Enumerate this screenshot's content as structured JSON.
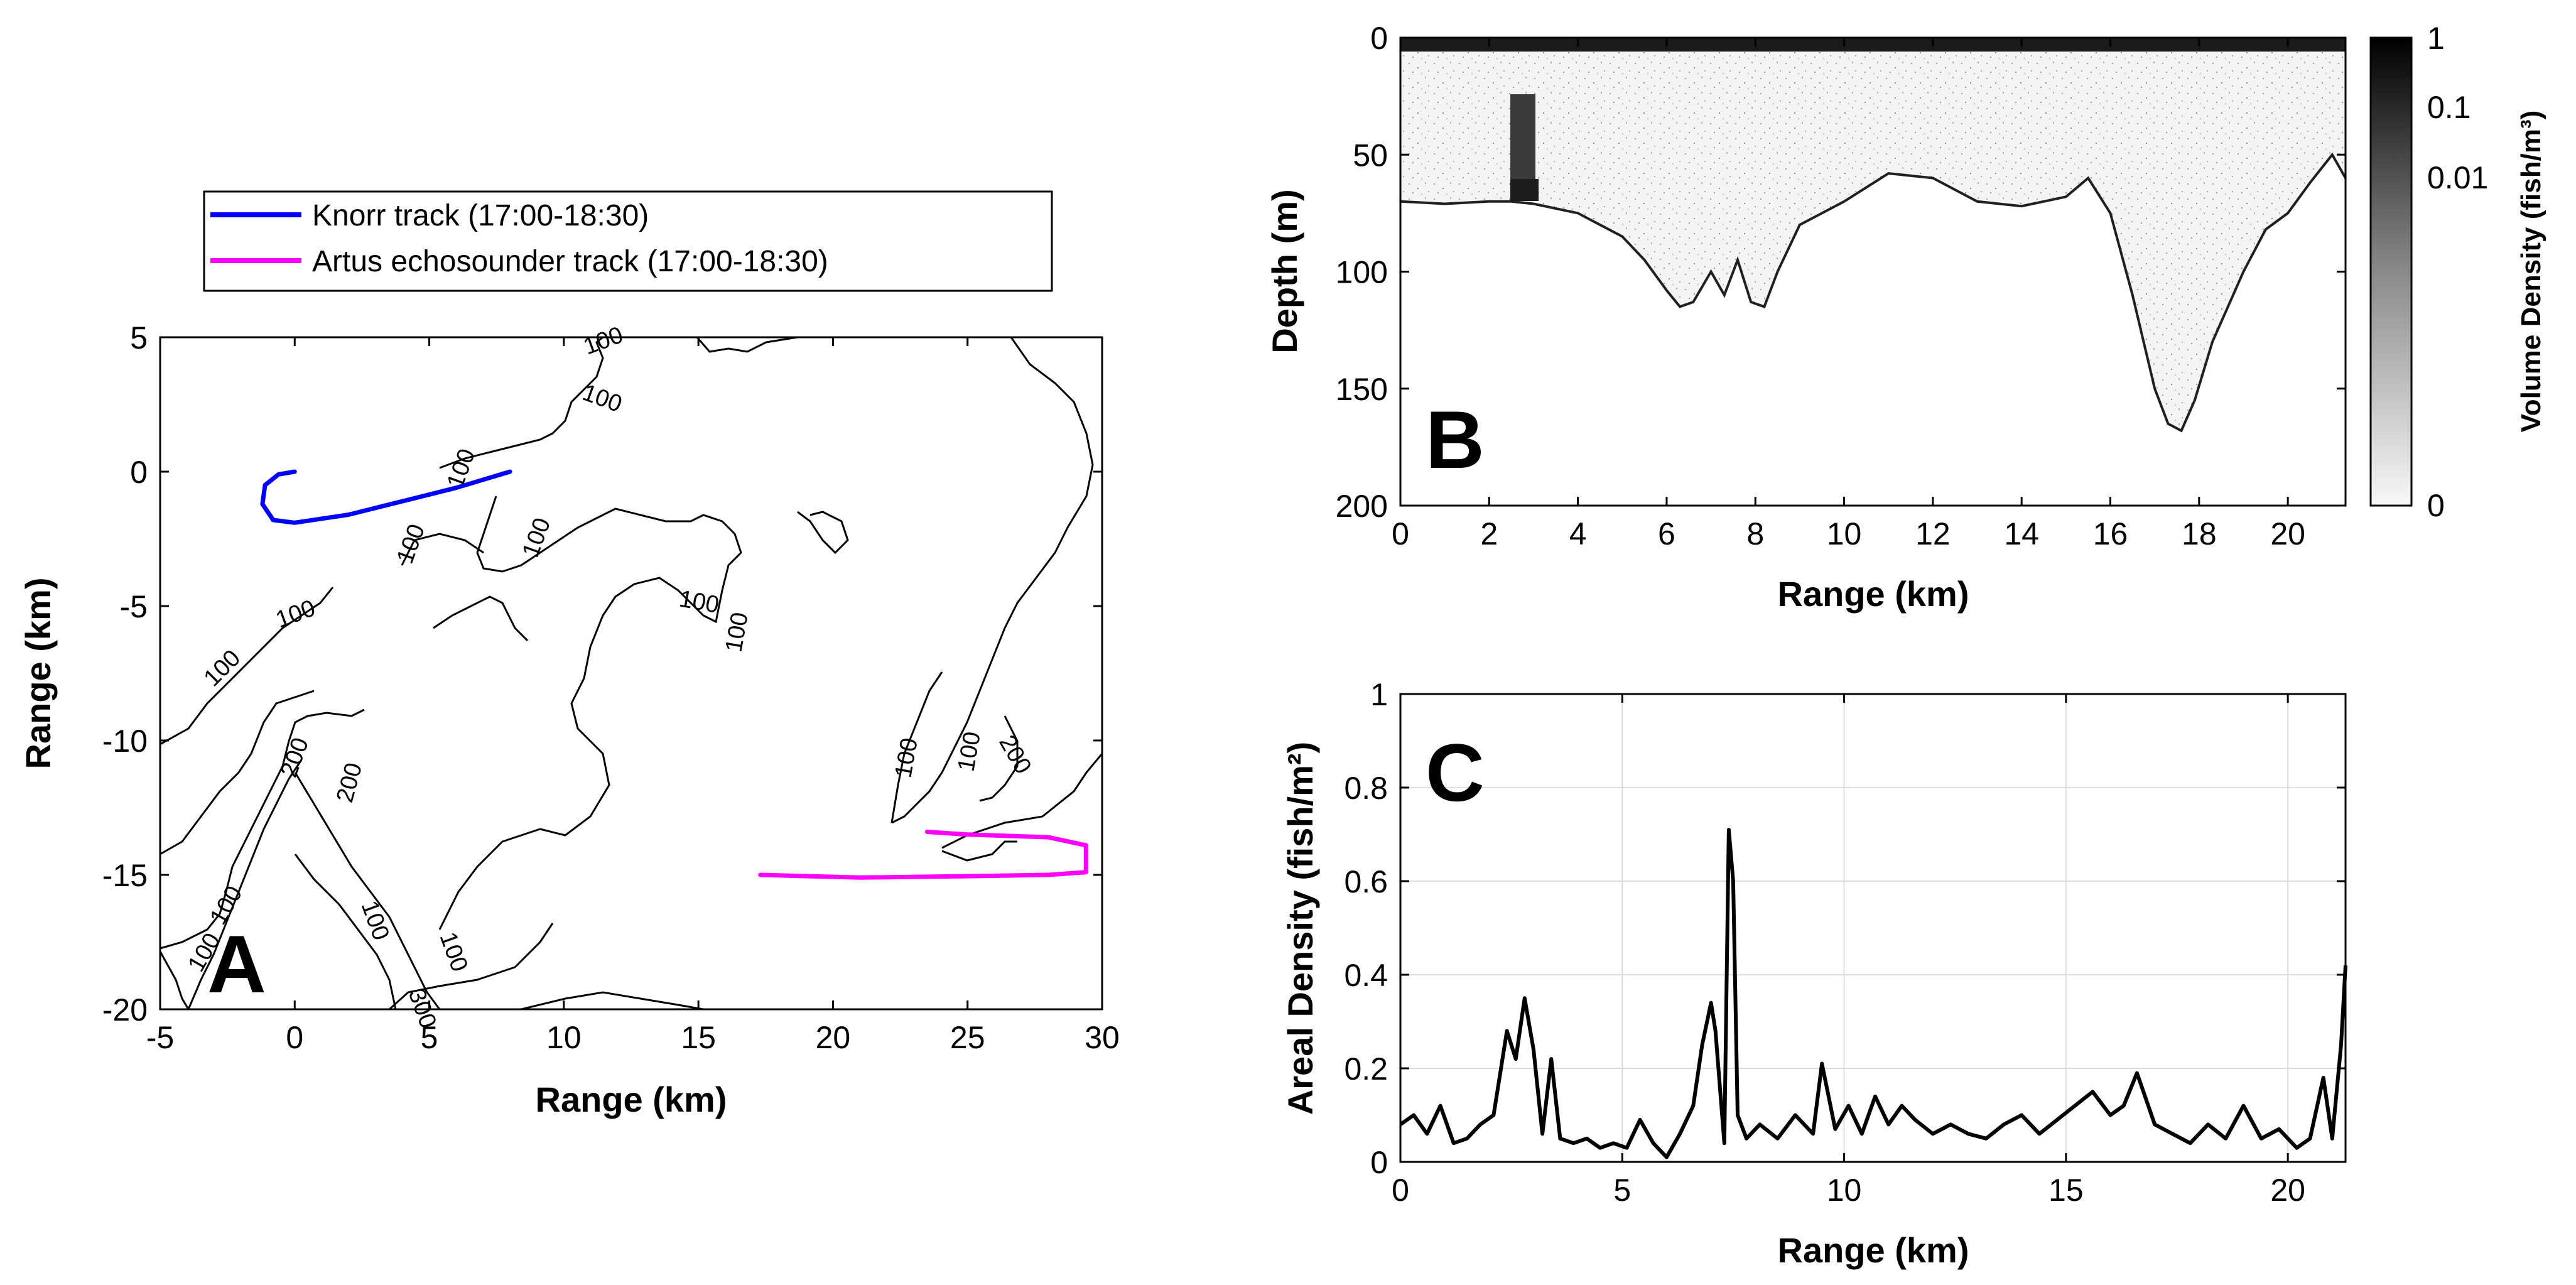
{
  "panel_a": {
    "letter": "A",
    "xlabel": "Range (km)",
    "ylabel": "Range (km)",
    "xlim": [
      -5,
      30
    ],
    "ylim": [
      -20,
      5
    ],
    "xticks": [
      "-5",
      "0",
      "5",
      "10",
      "15",
      "20",
      "25",
      "30"
    ],
    "yticks": [
      "5",
      "0",
      "-5",
      "-10",
      "-15",
      "-20"
    ],
    "legend": [
      {
        "label": "Knorr track (17:00-18:30)",
        "color": "#0000ff"
      },
      {
        "label": "Artus echosounder track (17:00-18:30)",
        "color": "#ff00ff"
      }
    ],
    "contour_labels": [
      "100",
      "100",
      "100",
      "100",
      "100",
      "100",
      "100",
      "100",
      "100",
      "100",
      "100",
      "200",
      "200",
      "100",
      "100",
      "200",
      "100",
      "100",
      "300"
    ]
  },
  "panel_b": {
    "letter": "B",
    "xlabel": "Range (km)",
    "ylabel": "Depth (m)",
    "xlim": [
      0,
      21.3
    ],
    "ylim": [
      0,
      200
    ],
    "xticks": [
      "0",
      "2",
      "4",
      "6",
      "8",
      "10",
      "12",
      "14",
      "16",
      "18",
      "20"
    ],
    "yticks": [
      "0",
      "50",
      "100",
      "150",
      "200"
    ],
    "colorbar_label": "Volume Density (fish/m³)",
    "colorbar_ticks": [
      "1",
      "0.1",
      "0.01",
      "0"
    ]
  },
  "panel_c": {
    "letter": "C",
    "xlabel": "Range (km)",
    "ylabel": "Areal Density (fish/m²)",
    "xlim": [
      0,
      21.3
    ],
    "ylim": [
      0,
      1
    ],
    "xticks": [
      "0",
      "5",
      "10",
      "15",
      "20"
    ],
    "yticks": [
      "1",
      "0.8",
      "0.6",
      "0.4",
      "0.2",
      "0"
    ]
  },
  "chart_data": [
    {
      "panel": "A",
      "type": "line",
      "title": "",
      "xlabel": "Range (km)",
      "ylabel": "Range (km)",
      "xlim": [
        -5,
        30
      ],
      "ylim": [
        -20,
        5
      ],
      "grid": false,
      "legend_position": "top",
      "series": [
        {
          "name": "Knorr track (17:00-18:30)",
          "color": "#0000ff",
          "x": [
            0,
            -0.6,
            -1.1,
            -1.2,
            -0.8,
            0,
            2,
            4,
            6,
            8
          ],
          "y": [
            0,
            -0.1,
            -0.5,
            -1.2,
            -1.8,
            -1.9,
            -1.6,
            -1.1,
            -0.6,
            0
          ]
        },
        {
          "name": "Artus echosounder track (17:00-18:30)",
          "color": "#ff00ff",
          "x": [
            17.3,
            21,
            25,
            28,
            29.4,
            29.4,
            28,
            25,
            23.5
          ],
          "y": [
            -15,
            -15.1,
            -15.05,
            -15,
            -14.9,
            -13.9,
            -13.6,
            -13.5,
            -13.4
          ]
        }
      ]
    },
    {
      "panel": "B",
      "type": "heatmap",
      "title": "",
      "xlabel": "Range (km)",
      "ylabel": "Depth (m)",
      "xlim": [
        0,
        21.3
      ],
      "ylim": [
        0,
        200
      ],
      "seafloor_depth": {
        "x": [
          0,
          1,
          2,
          2.5,
          3,
          4,
          5,
          5.5,
          6,
          6.3,
          6.6,
          7,
          7.3,
          7.6,
          7.9,
          8.2,
          8.5,
          9,
          10,
          11,
          12,
          12.5,
          13,
          14,
          15,
          15.5,
          16,
          16.5,
          17,
          17.3,
          17.6,
          17.9,
          18.3,
          19,
          19.5,
          20,
          20.5,
          21,
          21.3
        ],
        "y": [
          70,
          71,
          70,
          70,
          71,
          75,
          85,
          95,
          108,
          115,
          113,
          100,
          110,
          95,
          113,
          115,
          100,
          80,
          70,
          58,
          60,
          65,
          70,
          72,
          68,
          60,
          75,
          110,
          150,
          165,
          168,
          155,
          130,
          100,
          82,
          75,
          62,
          50,
          60
        ]
      },
      "colorbar": {
        "label": "Volume Density (fish/m³)",
        "ticks": [
          "1",
          "0.1",
          "0.01",
          "0"
        ]
      }
    },
    {
      "panel": "C",
      "type": "line",
      "title": "",
      "xlabel": "Range (km)",
      "ylabel": "Areal Density (fish/m²)",
      "xlim": [
        0,
        21.3
      ],
      "ylim": [
        0,
        1
      ],
      "grid": true,
      "series": [
        {
          "name": "Areal density",
          "color": "#000000",
          "x": [
            0,
            0.3,
            0.6,
            0.9,
            1.2,
            1.5,
            1.8,
            2.1,
            2.4,
            2.6,
            2.8,
            3.0,
            3.2,
            3.4,
            3.6,
            3.9,
            4.2,
            4.5,
            4.8,
            5.1,
            5.4,
            5.7,
            6.0,
            6.3,
            6.6,
            6.8,
            7.0,
            7.1,
            7.3,
            7.4,
            7.5,
            7.6,
            7.8,
            8.1,
            8.5,
            8.9,
            9.3,
            9.5,
            9.8,
            10.1,
            10.4,
            10.7,
            11.0,
            11.3,
            11.6,
            12.0,
            12.4,
            12.8,
            13.2,
            13.6,
            14.0,
            14.4,
            14.8,
            15.2,
            15.6,
            16.0,
            16.3,
            16.6,
            17.0,
            17.4,
            17.8,
            18.2,
            18.6,
            19.0,
            19.4,
            19.8,
            20.2,
            20.5,
            20.8,
            21.0,
            21.2,
            21.3
          ],
          "y": [
            0.08,
            0.1,
            0.06,
            0.12,
            0.04,
            0.05,
            0.08,
            0.1,
            0.28,
            0.22,
            0.35,
            0.24,
            0.06,
            0.22,
            0.05,
            0.04,
            0.05,
            0.03,
            0.04,
            0.03,
            0.09,
            0.04,
            0.01,
            0.06,
            0.12,
            0.25,
            0.34,
            0.28,
            0.04,
            0.71,
            0.6,
            0.1,
            0.05,
            0.08,
            0.05,
            0.1,
            0.06,
            0.21,
            0.07,
            0.12,
            0.06,
            0.14,
            0.08,
            0.12,
            0.09,
            0.06,
            0.08,
            0.06,
            0.05,
            0.08,
            0.1,
            0.06,
            0.09,
            0.12,
            0.15,
            0.1,
            0.12,
            0.19,
            0.08,
            0.06,
            0.04,
            0.08,
            0.05,
            0.12,
            0.05,
            0.07,
            0.03,
            0.05,
            0.18,
            0.05,
            0.25,
            0.42
          ]
        }
      ]
    }
  ]
}
